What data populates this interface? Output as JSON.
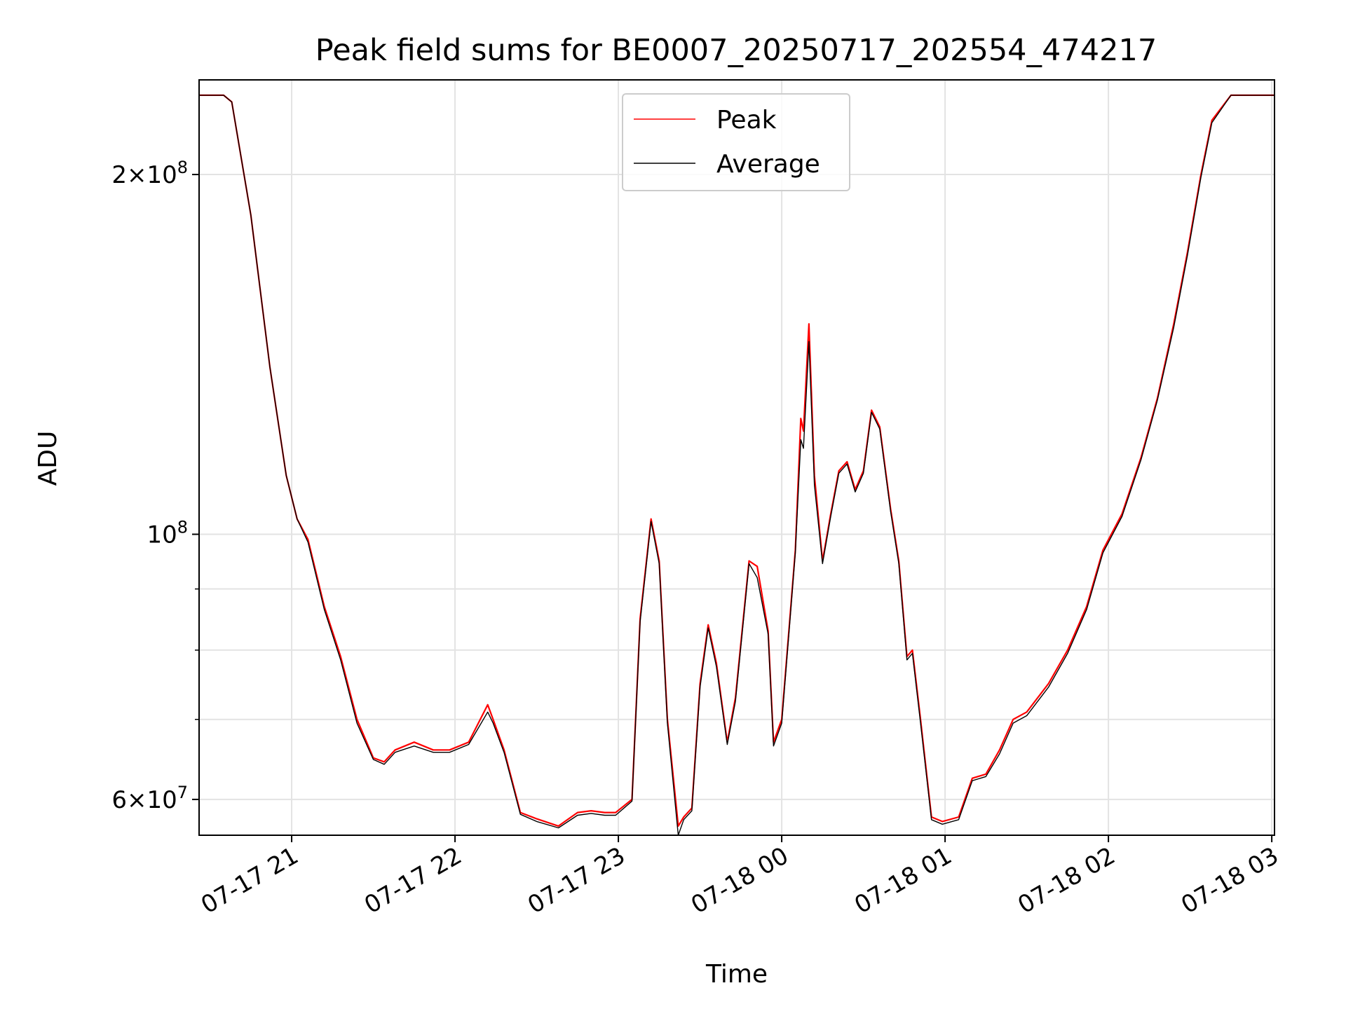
{
  "chart_data": {
    "type": "line",
    "title": "Peak field sums for BE0007_20250717_202554_474217",
    "xlabel": "Time",
    "ylabel": "ADU",
    "y_scale": "log",
    "ylim": [
      56000000,
      240000000
    ],
    "xlim": [
      "2025-07-17 20:26",
      "2025-07-18 03:01"
    ],
    "x_ticks": [
      {
        "label": "07-17 21",
        "value": "2025-07-17 21:00"
      },
      {
        "label": "07-17 22",
        "value": "2025-07-17 22:00"
      },
      {
        "label": "07-17 23",
        "value": "2025-07-17 23:00"
      },
      {
        "label": "07-18 00",
        "value": "2025-07-18 00:00"
      },
      {
        "label": "07-18 01",
        "value": "2025-07-18 01:00"
      },
      {
        "label": "07-18 02",
        "value": "2025-07-18 02:00"
      },
      {
        "label": "07-18 03",
        "value": "2025-07-18 03:00"
      }
    ],
    "y_ticks": [
      {
        "label_base": "6×10",
        "label_exp": "7",
        "value": 60000000
      },
      {
        "label_base": "10",
        "label_exp": "8",
        "value": 100000000
      },
      {
        "label_base": "2×10",
        "label_exp": "8",
        "value": 200000000
      }
    ],
    "y_minor_ticks": [
      70000000,
      80000000,
      90000000
    ],
    "grid": true,
    "legend_position": "top-center",
    "series": [
      {
        "name": "Peak",
        "color": "#ff0000",
        "x": [
          "2025-07-17 20:26",
          "2025-07-17 20:35",
          "2025-07-17 20:38",
          "2025-07-17 20:45",
          "2025-07-17 20:52",
          "2025-07-17 20:58",
          "2025-07-17 21:02",
          "2025-07-17 21:06",
          "2025-07-17 21:12",
          "2025-07-17 21:18",
          "2025-07-17 21:24",
          "2025-07-17 21:30",
          "2025-07-17 21:34",
          "2025-07-17 21:38",
          "2025-07-17 21:45",
          "2025-07-17 21:52",
          "2025-07-17 21:58",
          "2025-07-17 22:05",
          "2025-07-17 22:12",
          "2025-07-17 22:14",
          "2025-07-17 22:18",
          "2025-07-17 22:24",
          "2025-07-17 22:30",
          "2025-07-17 22:38",
          "2025-07-17 22:45",
          "2025-07-17 22:50",
          "2025-07-17 22:55",
          "2025-07-17 22:59",
          "2025-07-17 23:05",
          "2025-07-17 23:08",
          "2025-07-17 23:12",
          "2025-07-17 23:15",
          "2025-07-17 23:18",
          "2025-07-17 23:22",
          "2025-07-17 23:24",
          "2025-07-17 23:27",
          "2025-07-17 23:30",
          "2025-07-17 23:33",
          "2025-07-17 23:36",
          "2025-07-17 23:40",
          "2025-07-17 23:43",
          "2025-07-17 23:48",
          "2025-07-17 23:51",
          "2025-07-17 23:55",
          "2025-07-17 23:57",
          "2025-07-18 00:00",
          "2025-07-18 00:03",
          "2025-07-18 00:05",
          "2025-07-18 00:07",
          "2025-07-18 00:08",
          "2025-07-18 00:10",
          "2025-07-18 00:12",
          "2025-07-18 00:15",
          "2025-07-18 00:18",
          "2025-07-18 00:21",
          "2025-07-18 00:24",
          "2025-07-18 00:27",
          "2025-07-18 00:30",
          "2025-07-18 00:33",
          "2025-07-18 00:36",
          "2025-07-18 00:40",
          "2025-07-18 00:43",
          "2025-07-18 00:46",
          "2025-07-18 00:48",
          "2025-07-18 00:51",
          "2025-07-18 00:55",
          "2025-07-18 00:59",
          "2025-07-18 01:05",
          "2025-07-18 01:10",
          "2025-07-18 01:15",
          "2025-07-18 01:20",
          "2025-07-18 01:25",
          "2025-07-18 01:30",
          "2025-07-18 01:38",
          "2025-07-18 01:45",
          "2025-07-18 01:52",
          "2025-07-18 01:58",
          "2025-07-18 02:05",
          "2025-07-18 02:12",
          "2025-07-18 02:18",
          "2025-07-18 02:24",
          "2025-07-18 02:29",
          "2025-07-18 02:34",
          "2025-07-18 02:38",
          "2025-07-18 02:45",
          "2025-07-18 03:01"
        ],
        "y": [
          233000000,
          233000000,
          230000000,
          185000000,
          138000000,
          112000000,
          103000000,
          99000000,
          87000000,
          79000000,
          70000000,
          65000000,
          64500000,
          66000000,
          67000000,
          66000000,
          66000000,
          67000000,
          72000000,
          70000000,
          66000000,
          58500000,
          57800000,
          57000000,
          58500000,
          58700000,
          58500000,
          58500000,
          60000000,
          85000000,
          103000000,
          95000000,
          70000000,
          57000000,
          58000000,
          59000000,
          75000000,
          84000000,
          78000000,
          67000000,
          73000000,
          95000000,
          94000000,
          83000000,
          67000000,
          70000000,
          85000000,
          97000000,
          125000000,
          122000000,
          150000000,
          112000000,
          95000000,
          104000000,
          113000000,
          115000000,
          109000000,
          113000000,
          127000000,
          123000000,
          105000000,
          95000000,
          79000000,
          80000000,
          70000000,
          58000000,
          57500000,
          58000000,
          62500000,
          63000000,
          66000000,
          70000000,
          71000000,
          75000000,
          80000000,
          87000000,
          97000000,
          104000000,
          116000000,
          130000000,
          150000000,
          172000000,
          200000000,
          222000000,
          233000000,
          233000000
        ]
      },
      {
        "name": "Average",
        "color": "#000000",
        "x": [
          "2025-07-17 20:26",
          "2025-07-17 20:35",
          "2025-07-17 20:38",
          "2025-07-17 20:45",
          "2025-07-17 20:52",
          "2025-07-17 20:58",
          "2025-07-17 21:02",
          "2025-07-17 21:06",
          "2025-07-17 21:12",
          "2025-07-17 21:18",
          "2025-07-17 21:24",
          "2025-07-17 21:30",
          "2025-07-17 21:34",
          "2025-07-17 21:38",
          "2025-07-17 21:45",
          "2025-07-17 21:52",
          "2025-07-17 21:58",
          "2025-07-17 22:05",
          "2025-07-17 22:12",
          "2025-07-17 22:14",
          "2025-07-17 22:18",
          "2025-07-17 22:24",
          "2025-07-17 22:30",
          "2025-07-17 22:38",
          "2025-07-17 22:45",
          "2025-07-17 22:50",
          "2025-07-17 22:55",
          "2025-07-17 22:59",
          "2025-07-17 23:05",
          "2025-07-17 23:08",
          "2025-07-17 23:12",
          "2025-07-17 23:15",
          "2025-07-17 23:18",
          "2025-07-17 23:22",
          "2025-07-17 23:24",
          "2025-07-17 23:27",
          "2025-07-17 23:30",
          "2025-07-17 23:33",
          "2025-07-17 23:36",
          "2025-07-17 23:40",
          "2025-07-17 23:43",
          "2025-07-17 23:48",
          "2025-07-17 23:51",
          "2025-07-17 23:55",
          "2025-07-17 23:57",
          "2025-07-18 00:00",
          "2025-07-18 00:03",
          "2025-07-18 00:05",
          "2025-07-18 00:07",
          "2025-07-18 00:08",
          "2025-07-18 00:10",
          "2025-07-18 00:12",
          "2025-07-18 00:15",
          "2025-07-18 00:18",
          "2025-07-18 00:21",
          "2025-07-18 00:24",
          "2025-07-18 00:27",
          "2025-07-18 00:30",
          "2025-07-18 00:33",
          "2025-07-18 00:36",
          "2025-07-18 00:40",
          "2025-07-18 00:43",
          "2025-07-18 00:46",
          "2025-07-18 00:48",
          "2025-07-18 00:51",
          "2025-07-18 00:55",
          "2025-07-18 00:59",
          "2025-07-18 01:05",
          "2025-07-18 01:10",
          "2025-07-18 01:15",
          "2025-07-18 01:20",
          "2025-07-18 01:25",
          "2025-07-18 01:30",
          "2025-07-18 01:38",
          "2025-07-18 01:45",
          "2025-07-18 01:52",
          "2025-07-18 01:58",
          "2025-07-18 02:05",
          "2025-07-18 02:12",
          "2025-07-18 02:18",
          "2025-07-18 02:24",
          "2025-07-18 02:29",
          "2025-07-18 02:34",
          "2025-07-18 02:38",
          "2025-07-18 02:45",
          "2025-07-18 03:01"
        ],
        "y": [
          233000000,
          233000000,
          230000000,
          185000000,
          138000000,
          112000000,
          103000000,
          98500000,
          86500000,
          78500000,
          69500000,
          64800000,
          64200000,
          65700000,
          66500000,
          65700000,
          65700000,
          66700000,
          71000000,
          69500000,
          65700000,
          58300000,
          57500000,
          56800000,
          58200000,
          58400000,
          58200000,
          58200000,
          59800000,
          84500000,
          102500000,
          94500000,
          69500000,
          56000000,
          57700000,
          58700000,
          74500000,
          83500000,
          77500000,
          66700000,
          72500000,
          94500000,
          92000000,
          82500000,
          66500000,
          69500000,
          84500000,
          96500000,
          120000000,
          118000000,
          145000000,
          110000000,
          94500000,
          103500000,
          112500000,
          114500000,
          108500000,
          112500000,
          126500000,
          122500000,
          104500000,
          94500000,
          78500000,
          79500000,
          69500000,
          57700000,
          57200000,
          57700000,
          62200000,
          62700000,
          65500000,
          69500000,
          70500000,
          74500000,
          79500000,
          86500000,
          96500000,
          103500000,
          115500000,
          129500000,
          149000000,
          171000000,
          199000000,
          221000000,
          233000000,
          233000000
        ]
      }
    ]
  }
}
